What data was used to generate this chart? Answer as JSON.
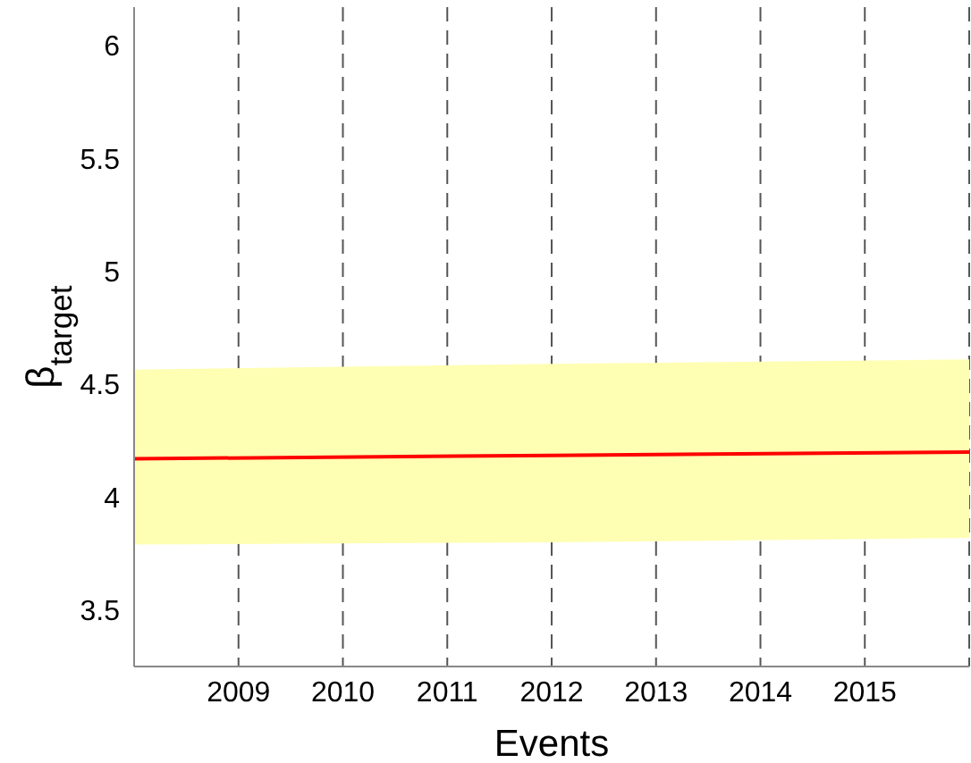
{
  "chart_data": {
    "type": "line",
    "xlabel": "Events",
    "ylabel": "β$_{target}$",
    "x": [
      2008,
      2012,
      2016
    ],
    "series": [
      {
        "color": "#ff0000",
        "values": [
          4.17,
          4.185,
          4.2
        ],
        "lower": [
          3.79,
          3.8,
          3.82
        ],
        "upper": [
          4.565,
          4.59,
          4.61
        ]
      }
    ],
    "xlim": [
      2008,
      2016
    ],
    "xticks": [
      2009,
      2010,
      2011,
      2012,
      2013,
      2014,
      2015
    ],
    "ylim": [
      3.25,
      6.17
    ],
    "yticks": [
      3.5,
      4,
      4.5,
      5,
      5.5,
      6
    ],
    "grid": "x",
    "marker": "none",
    "line_style": "solid"
  }
}
